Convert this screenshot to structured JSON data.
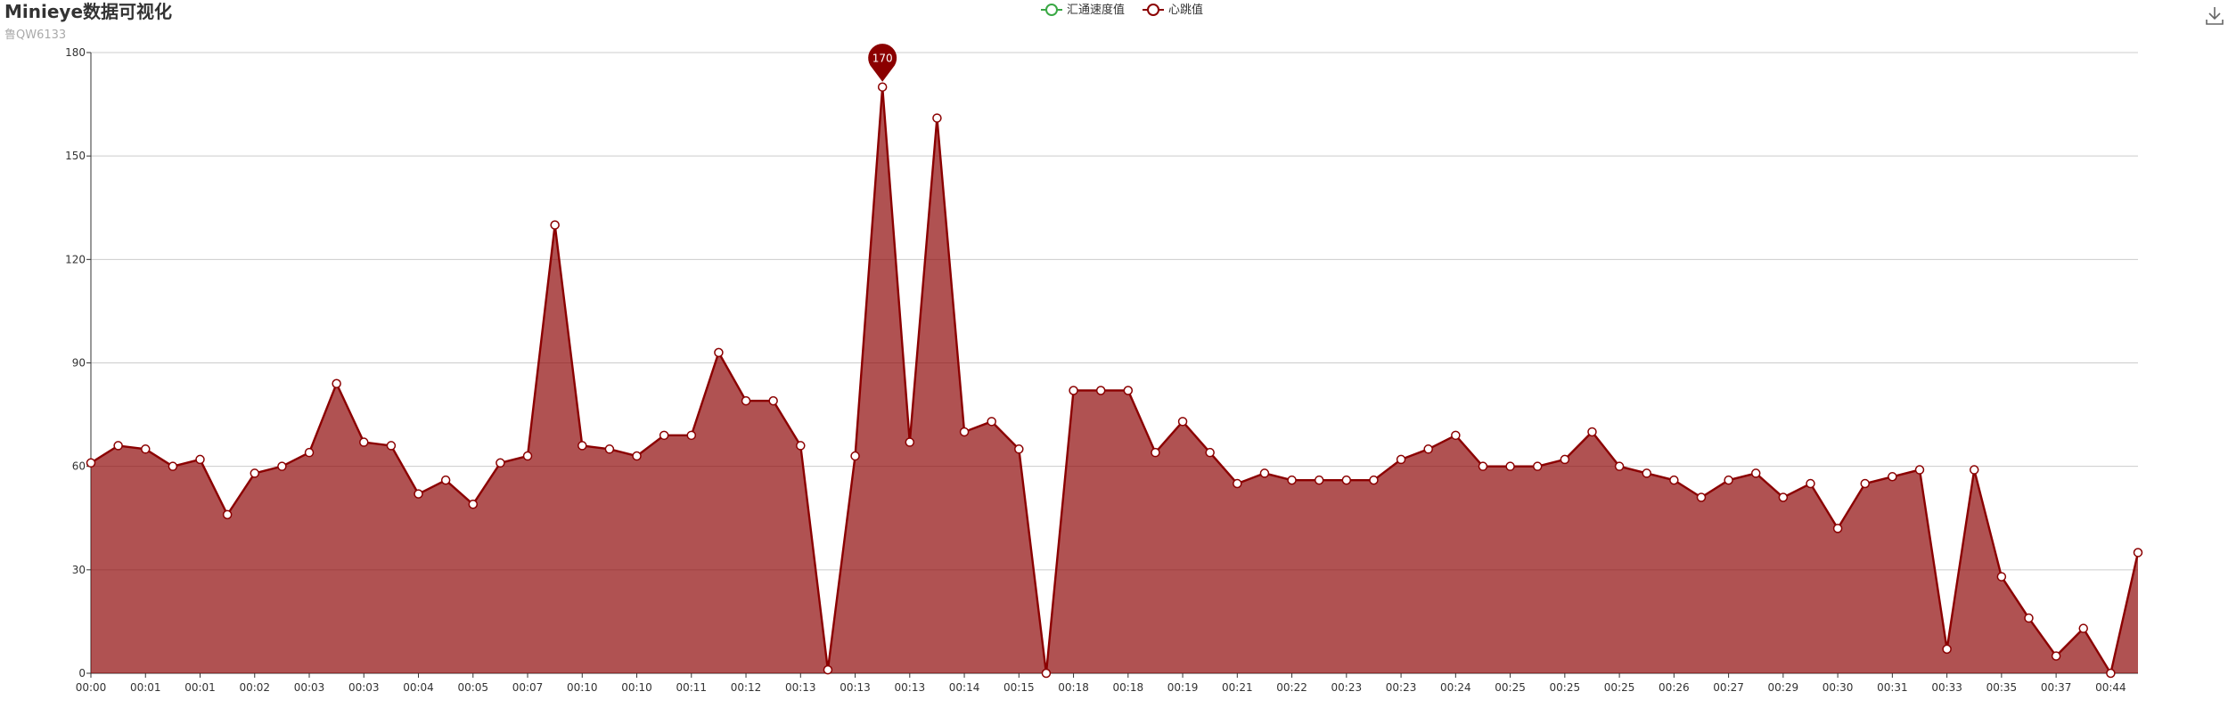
{
  "chart_data": {
    "type": "line",
    "title": "Minieye数据可视化",
    "subtitle": "鲁QW6133",
    "categories": [
      "00:00",
      null,
      "00:01",
      null,
      "00:01",
      null,
      "00:02",
      null,
      "00:03",
      null,
      "00:03",
      null,
      "00:04",
      null,
      "00:05",
      null,
      "00:07",
      null,
      "00:10",
      null,
      "00:10",
      null,
      "00:11",
      null,
      "00:12",
      null,
      "00:13",
      null,
      "00:13",
      null,
      "00:13",
      null,
      "00:14",
      null,
      "00:15",
      null,
      "00:18",
      null,
      "00:18",
      null,
      "00:19",
      null,
      "00:21",
      null,
      "00:22",
      null,
      "00:23",
      null,
      "00:23",
      null,
      "00:24",
      null,
      "00:25",
      null,
      "00:25",
      null,
      "00:25",
      null,
      "00:26",
      null,
      "00:27",
      null,
      "00:29",
      null,
      "00:30",
      null,
      "00:31",
      null,
      "00:33",
      null,
      "00:35",
      null,
      "00:37",
      null,
      "00:44",
      null
    ],
    "series": [
      {
        "name": "汇通速度值",
        "color": "#3aa845",
        "values": [
          null,
          null,
          null,
          null,
          null,
          null,
          null,
          null,
          null,
          null,
          null,
          null,
          null,
          null,
          null,
          null,
          null,
          null,
          null,
          null,
          null,
          null,
          null,
          null,
          null,
          null,
          null,
          null,
          null,
          null,
          null,
          null,
          null,
          null,
          null,
          null,
          null,
          null,
          null,
          null,
          null,
          null,
          null,
          null,
          null,
          null,
          null,
          null,
          null,
          null,
          null,
          null,
          null,
          null,
          null,
          null,
          null,
          null,
          null,
          null,
          null,
          null,
          null,
          null,
          null,
          null,
          null,
          null,
          null,
          null,
          null,
          null,
          null,
          null,
          null,
          null
        ]
      },
      {
        "name": "心跳值",
        "color": "#8b0000",
        "area": true,
        "values": [
          61,
          66,
          65,
          60,
          62,
          46,
          58,
          60,
          64,
          84,
          67,
          66,
          52,
          56,
          49,
          61,
          63,
          130,
          66,
          65,
          63,
          69,
          69,
          93,
          79,
          79,
          66,
          1,
          63,
          170,
          67,
          161,
          70,
          73,
          65,
          0,
          82,
          82,
          82,
          64,
          73,
          64,
          55,
          58,
          56,
          56,
          56,
          56,
          62,
          65,
          69,
          60,
          60,
          60,
          62,
          70,
          60,
          58,
          56,
          51,
          56,
          58,
          51,
          55,
          42,
          55,
          57,
          59,
          7,
          59,
          28,
          16,
          5,
          13,
          0,
          35
        ]
      }
    ],
    "ylim": [
      0,
      180
    ],
    "yticks": [
      0,
      30,
      60,
      90,
      120,
      150,
      180
    ],
    "grid": true
  }
}
